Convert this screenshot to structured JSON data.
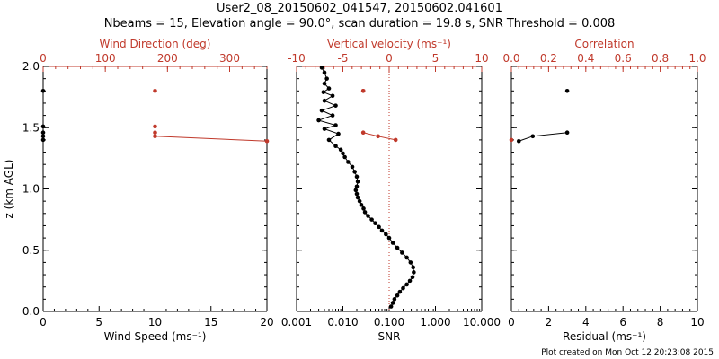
{
  "title": {
    "line1": "User2_08_20150602_041547, 20150602.041601",
    "line2": "Nbeams = 15, Elevation angle = 90.0°, scan duration = 19.8 s, SNR Threshold = 0.008"
  },
  "footer": "Plot created on Mon Oct 12 20:23:08 2015",
  "colors": {
    "axis": "#000000",
    "accent": "#c0392b",
    "data": "#000000"
  },
  "chart_data": [
    {
      "type": "scatter",
      "ylabel": "z (km AGL)",
      "ylim": [
        0,
        2
      ],
      "yticks": [
        "0.0",
        "0.5",
        "1.0",
        "1.5",
        "2.0"
      ],
      "xlabel": "Wind Speed (ms⁻¹)",
      "xlim": [
        0,
        20
      ],
      "xticks": [
        "0",
        "5",
        "10",
        "15",
        "20"
      ],
      "top_label": "Wind Direction (deg)",
      "top_lim": [
        0,
        360
      ],
      "top_ticks": [
        "0",
        "100",
        "200",
        "300"
      ],
      "series": [
        {
          "axis": "bottom",
          "color": "#000000",
          "x": [
            0,
            0,
            0,
            0,
            0
          ],
          "y": [
            1.8,
            1.51,
            1.46,
            1.43,
            1.4
          ]
        },
        {
          "axis": "top",
          "color": "#c0392b",
          "x": [
            180,
            180,
            180,
            180,
            360
          ],
          "y": [
            1.8,
            1.51,
            1.46,
            1.43,
            1.39
          ],
          "line_from": 3
        }
      ]
    },
    {
      "type": "line",
      "xlabel": "SNR",
      "xscale": "log",
      "xlim": [
        0.001,
        10
      ],
      "xticks": [
        "0.001",
        "0.010",
        "0.100",
        "1.000",
        "10.000"
      ],
      "top_label": "Vertical velocity (ms⁻¹)",
      "top_lim": [
        -10,
        10
      ],
      "top_ticks": [
        "-10",
        "-5",
        "0",
        "5",
        "10"
      ],
      "zero_line": true,
      "series": [
        {
          "axis": "bottom",
          "color": "#000000",
          "x": [
            0.11,
            0.12,
            0.13,
            0.15,
            0.17,
            0.2,
            0.24,
            0.28,
            0.32,
            0.34,
            0.33,
            0.29,
            0.24,
            0.19,
            0.15,
            0.12,
            0.1,
            0.085,
            0.07,
            0.06,
            0.05,
            0.042,
            0.035,
            0.03,
            0.028,
            0.025,
            0.023,
            0.021,
            0.02,
            0.019,
            0.02,
            0.021,
            0.02,
            0.018,
            0.016,
            0.013,
            0.011,
            0.01,
            0.009,
            0.007,
            0.005,
            0.008,
            0.004,
            0.007,
            0.003,
            0.006,
            0.0035,
            0.007,
            0.004,
            0.006,
            0.0038,
            0.005,
            0.004,
            0.0045,
            0.004,
            0.0035
          ],
          "y": [
            0.04,
            0.07,
            0.1,
            0.13,
            0.16,
            0.19,
            0.22,
            0.25,
            0.28,
            0.32,
            0.36,
            0.4,
            0.44,
            0.48,
            0.52,
            0.56,
            0.6,
            0.63,
            0.66,
            0.69,
            0.72,
            0.75,
            0.78,
            0.81,
            0.84,
            0.87,
            0.9,
            0.93,
            0.96,
            0.99,
            1.02,
            1.06,
            1.1,
            1.14,
            1.18,
            1.22,
            1.26,
            1.29,
            1.32,
            1.35,
            1.4,
            1.45,
            1.49,
            1.52,
            1.56,
            1.6,
            1.64,
            1.68,
            1.72,
            1.76,
            1.79,
            1.82,
            1.86,
            1.9,
            1.95,
            1.99
          ],
          "markers": "all"
        },
        {
          "axis": "top",
          "color": "#c0392b",
          "x": [
            -2.8,
            -2.8,
            -2.8,
            -1.2,
            0.7
          ],
          "y": [
            1.8,
            1.8,
            1.46,
            1.43,
            1.4
          ],
          "line_from": 2
        }
      ]
    },
    {
      "type": "scatter",
      "xlabel": "Residual (ms⁻¹)",
      "xlim": [
        0,
        10
      ],
      "xticks": [
        "0",
        "2",
        "4",
        "6",
        "8",
        "10"
      ],
      "top_label": "Correlation",
      "top_lim": [
        0,
        1
      ],
      "top_ticks": [
        "0.0",
        "0.2",
        "0.4",
        "0.6",
        "0.8",
        "1.0"
      ],
      "series": [
        {
          "axis": "bottom",
          "color": "#000000",
          "x": [
            3.0,
            3.0,
            1.15,
            0.4
          ],
          "y": [
            1.8,
            1.46,
            1.43,
            1.39
          ],
          "line_from": 1
        },
        {
          "axis": "top",
          "color": "#c0392b",
          "x": [
            0.0
          ],
          "y": [
            1.4
          ]
        }
      ]
    }
  ]
}
